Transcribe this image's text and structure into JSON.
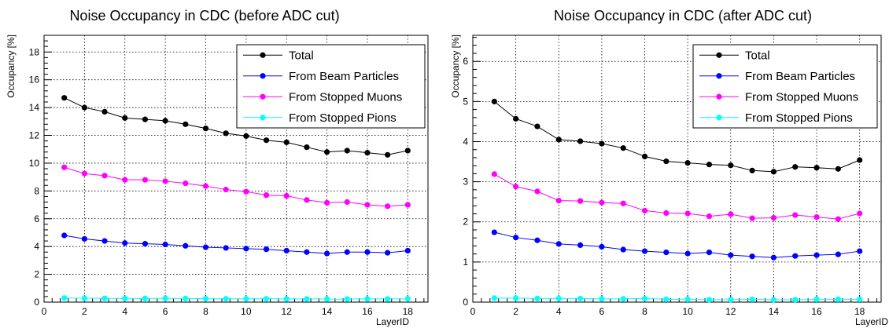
{
  "chart_data": [
    {
      "type": "line",
      "title": "Noise Occupancy in CDC (before ADC cut)",
      "xlabel": "LayerID",
      "ylabel": "Occupancy [%]",
      "xlim": [
        0,
        19
      ],
      "ylim": [
        0,
        19.2
      ],
      "xticks": [
        0,
        2,
        4,
        6,
        8,
        10,
        12,
        14,
        16,
        18
      ],
      "yticks": [
        0,
        2,
        4,
        6,
        8,
        10,
        12,
        14,
        16,
        18
      ],
      "grid": true,
      "legend_position": "top-right",
      "x": [
        1,
        2,
        3,
        4,
        5,
        6,
        7,
        8,
        9,
        10,
        11,
        12,
        13,
        14,
        15,
        16,
        17,
        18
      ],
      "series": [
        {
          "name": "Total",
          "color": "#000000",
          "values": [
            14.7,
            14.0,
            13.7,
            13.25,
            13.15,
            13.05,
            12.8,
            12.5,
            12.15,
            11.95,
            11.65,
            11.5,
            11.15,
            10.8,
            10.9,
            10.75,
            10.6,
            10.9
          ]
        },
        {
          "name": "From Beam Particles",
          "color": "#0000ff",
          "values": [
            4.8,
            4.55,
            4.4,
            4.25,
            4.2,
            4.15,
            4.05,
            3.95,
            3.9,
            3.85,
            3.8,
            3.7,
            3.6,
            3.5,
            3.6,
            3.6,
            3.55,
            3.7
          ]
        },
        {
          "name": "From Stopped Muons",
          "color": "#ff00ff",
          "values": [
            9.7,
            9.25,
            9.1,
            8.8,
            8.8,
            8.7,
            8.55,
            8.35,
            8.1,
            7.95,
            7.7,
            7.65,
            7.35,
            7.15,
            7.2,
            7.0,
            6.9,
            7.0
          ]
        },
        {
          "name": "From Stopped Pions",
          "color": "#00ffff",
          "values": [
            0.3,
            0.28,
            0.27,
            0.26,
            0.26,
            0.27,
            0.26,
            0.25,
            0.24,
            0.24,
            0.24,
            0.23,
            0.23,
            0.22,
            0.22,
            0.23,
            0.23,
            0.24
          ]
        }
      ]
    },
    {
      "type": "line",
      "title": "Noise Occupancy in CDC (after ADC cut)",
      "xlabel": "LayerID",
      "ylabel": "Occupancy [%]",
      "xlim": [
        0,
        19
      ],
      "ylim": [
        0,
        6.65
      ],
      "xticks": [
        0,
        2,
        4,
        6,
        8,
        10,
        12,
        14,
        16,
        18
      ],
      "yticks": [
        0,
        1,
        2,
        3,
        4,
        5,
        6
      ],
      "grid": true,
      "legend_position": "top-right",
      "x": [
        1,
        2,
        3,
        4,
        5,
        6,
        7,
        8,
        9,
        10,
        11,
        12,
        13,
        14,
        15,
        16,
        17,
        18
      ],
      "series": [
        {
          "name": "Total",
          "color": "#000000",
          "values": [
            5.0,
            4.57,
            4.38,
            4.05,
            4.01,
            3.95,
            3.84,
            3.63,
            3.51,
            3.47,
            3.43,
            3.41,
            3.28,
            3.25,
            3.37,
            3.35,
            3.32,
            3.54
          ]
        },
        {
          "name": "From Beam Particles",
          "color": "#0000ff",
          "values": [
            1.74,
            1.61,
            1.54,
            1.45,
            1.42,
            1.38,
            1.31,
            1.27,
            1.24,
            1.21,
            1.24,
            1.17,
            1.14,
            1.11,
            1.15,
            1.17,
            1.19,
            1.27
          ]
        },
        {
          "name": "From Stopped Muons",
          "color": "#ff00ff",
          "values": [
            3.19,
            2.88,
            2.76,
            2.53,
            2.52,
            2.48,
            2.46,
            2.28,
            2.22,
            2.21,
            2.14,
            2.19,
            2.09,
            2.1,
            2.17,
            2.12,
            2.07,
            2.21
          ]
        },
        {
          "name": "From Stopped Pions",
          "color": "#00ffff",
          "values": [
            0.1,
            0.1,
            0.09,
            0.09,
            0.09,
            0.08,
            0.08,
            0.09,
            0.07,
            0.07,
            0.06,
            0.06,
            0.07,
            0.06,
            0.06,
            0.07,
            0.07,
            0.07
          ]
        }
      ]
    }
  ]
}
